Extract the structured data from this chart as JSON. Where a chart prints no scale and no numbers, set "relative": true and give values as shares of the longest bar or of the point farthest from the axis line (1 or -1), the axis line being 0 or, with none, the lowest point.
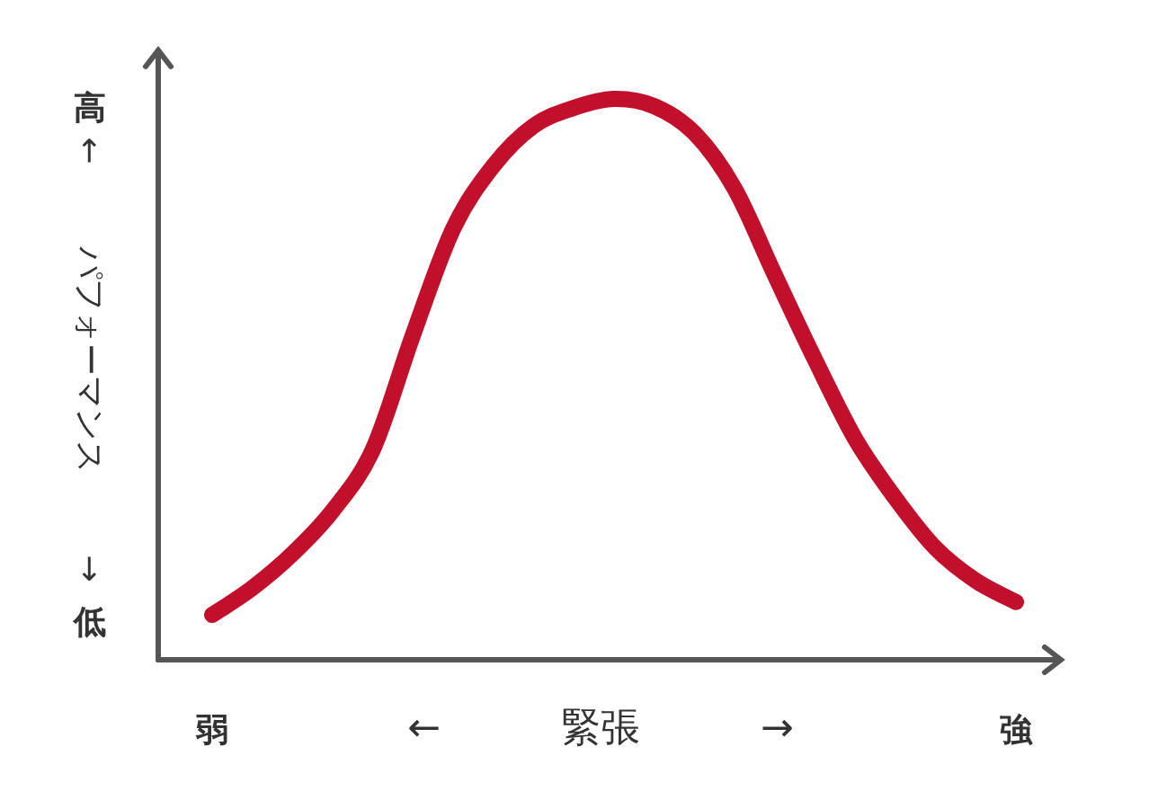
{
  "chart_data": {
    "type": "line",
    "relative": true,
    "xlabel": "← 緊張 →",
    "ylabel": "← パフォーマンス →",
    "annotations": [
      "高",
      "低"
    ],
    "categories": [
      "弱",
      null,
      null,
      null,
      null,
      null,
      null,
      null,
      null,
      null,
      null,
      null,
      null,
      null,
      null,
      null,
      null,
      null,
      null,
      null,
      "強"
    ],
    "series": [
      {
        "color": "#c20f2b",
        "values": [
          0.08,
          0.128,
          0.189,
          0.266,
          0.375,
          0.58,
          0.769,
          0.881,
          0.952,
          0.984,
          1,
          0.987,
          0.939,
          0.84,
          0.686,
          0.535,
          0.394,
          0.288,
          0.199,
          0.141,
          0.103
        ]
      }
    ]
  }
}
